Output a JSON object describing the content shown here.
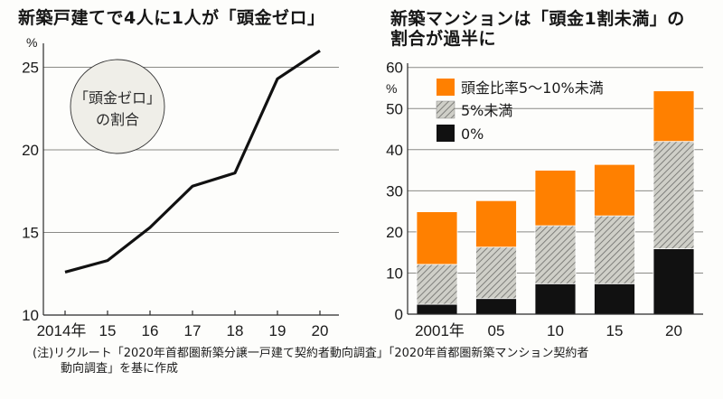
{
  "colors": {
    "orange": "#ff8000",
    "black": "#111111",
    "hatch_bg": "#cfcfc8",
    "hatch_line": "#6b6b68",
    "circle_fill": "#efeee8",
    "line": "#111111"
  },
  "chart_data": [
    {
      "type": "line",
      "title": "新築戸建てで4人に1人が「頭金ゼロ」",
      "xlabel": "",
      "ylabel": "%",
      "x": [
        "2014年",
        "15",
        "16",
        "17",
        "18",
        "19",
        "20"
      ],
      "series": [
        {
          "name": "「頭金ゼロ」の割合",
          "values": [
            12.6,
            13.3,
            15.3,
            17.8,
            18.6,
            24.3,
            26.0
          ]
        }
      ],
      "ylim": [
        10,
        26.5
      ],
      "yticks": [
        10,
        15,
        20,
        25
      ],
      "ytick_labels": [
        "10",
        "15",
        "20",
        "25"
      ],
      "grid": true,
      "annotation": {
        "line1": "「頭金ゼロ」",
        "line2": "の割合",
        "placement": "top-left"
      }
    },
    {
      "type": "bar",
      "stacked": true,
      "title": "新築マンションは「頭金1割未満」の割合が過半に",
      "title_line1": "新築マンションは「頭金1割未満」の",
      "title_line2": "割合が過半に",
      "xlabel": "",
      "ylabel": "%",
      "categories": [
        "2001年",
        "05",
        "10",
        "15",
        "20"
      ],
      "series": [
        {
          "name": "0%",
          "color_key": "black",
          "values": [
            2.4,
            3.8,
            7.4,
            7.4,
            15.9
          ]
        },
        {
          "name": "5%未満",
          "color_key": "hatch",
          "values": [
            9.7,
            12.5,
            14.1,
            16.5,
            26.1
          ]
        },
        {
          "name": "頭金比率5～10%未満",
          "color_key": "orange",
          "values": [
            12.8,
            11.3,
            13.5,
            12.5,
            12.3
          ]
        }
      ],
      "stack_totals": [
        24.9,
        27.6,
        35.0,
        36.4,
        54.3
      ],
      "ylim": [
        0,
        60
      ],
      "yticks": [
        0,
        10,
        20,
        30,
        40,
        50,
        60
      ],
      "ytick_labels": [
        "0",
        "10",
        "20",
        "30",
        "40",
        "50",
        "60"
      ],
      "grid": true,
      "legend": {
        "placement": "top-left",
        "entries": [
          "頭金比率5～10%未満",
          "5%未満",
          "0%"
        ]
      }
    }
  ],
  "footnote": {
    "line1": "(注)リクルート「2020年首都圏新築分譲一戸建て契約者動向調査」「2020年首都圏新築マンション契約者",
    "line2": "動向調査」を基に作成"
  }
}
